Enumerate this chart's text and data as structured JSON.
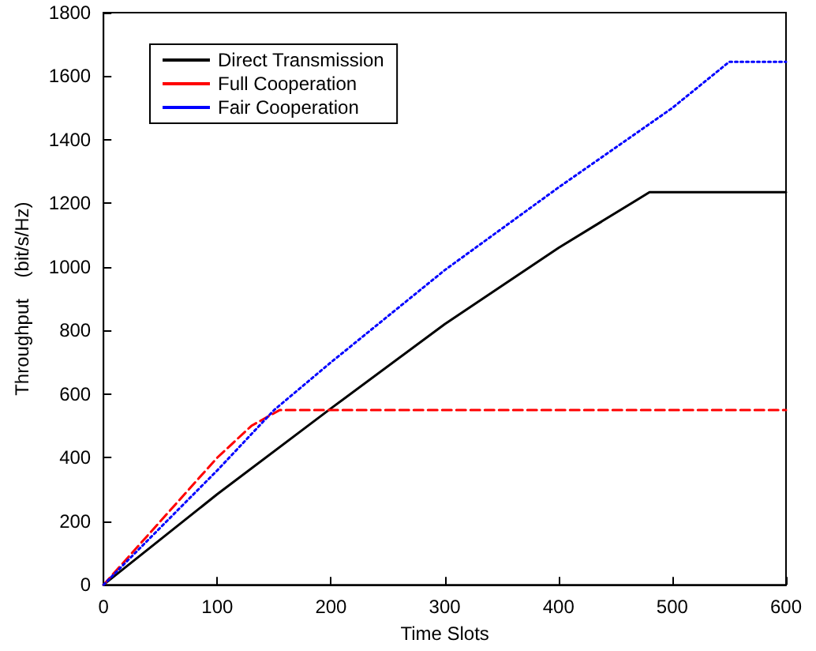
{
  "chart_data": {
    "type": "line",
    "xlabel": "Time Slots",
    "ylabel": "Throughput    (bit/s/Hz)",
    "xlim": [
      0,
      600
    ],
    "ylim": [
      0,
      1800
    ],
    "xticks": [
      0,
      100,
      200,
      300,
      400,
      500,
      600
    ],
    "yticks": [
      0,
      200,
      400,
      600,
      800,
      1000,
      1200,
      1400,
      1600,
      1800
    ],
    "grid": false,
    "legend": "top left",
    "marker": "none",
    "series": [
      {
        "name": "Direct Transmission",
        "color": "#000000",
        "line_style": "solid",
        "x": [
          0,
          100,
          200,
          300,
          400,
          480,
          600
        ],
        "values": [
          0,
          285,
          555,
          820,
          1060,
          1235,
          1235
        ]
      },
      {
        "name": "Full Cooperation",
        "color": "#ff0000",
        "line_style": "dashed",
        "x": [
          0,
          50,
          100,
          130,
          155,
          600
        ],
        "values": [
          0,
          200,
          400,
          500,
          550,
          550
        ]
      },
      {
        "name": "Fair Cooperation",
        "color": "#0000ff",
        "line_style": "dotted",
        "x": [
          0,
          100,
          150,
          200,
          300,
          400,
          500,
          550,
          600
        ],
        "values": [
          0,
          360,
          550,
          700,
          990,
          1250,
          1500,
          1645,
          1645
        ]
      }
    ]
  }
}
